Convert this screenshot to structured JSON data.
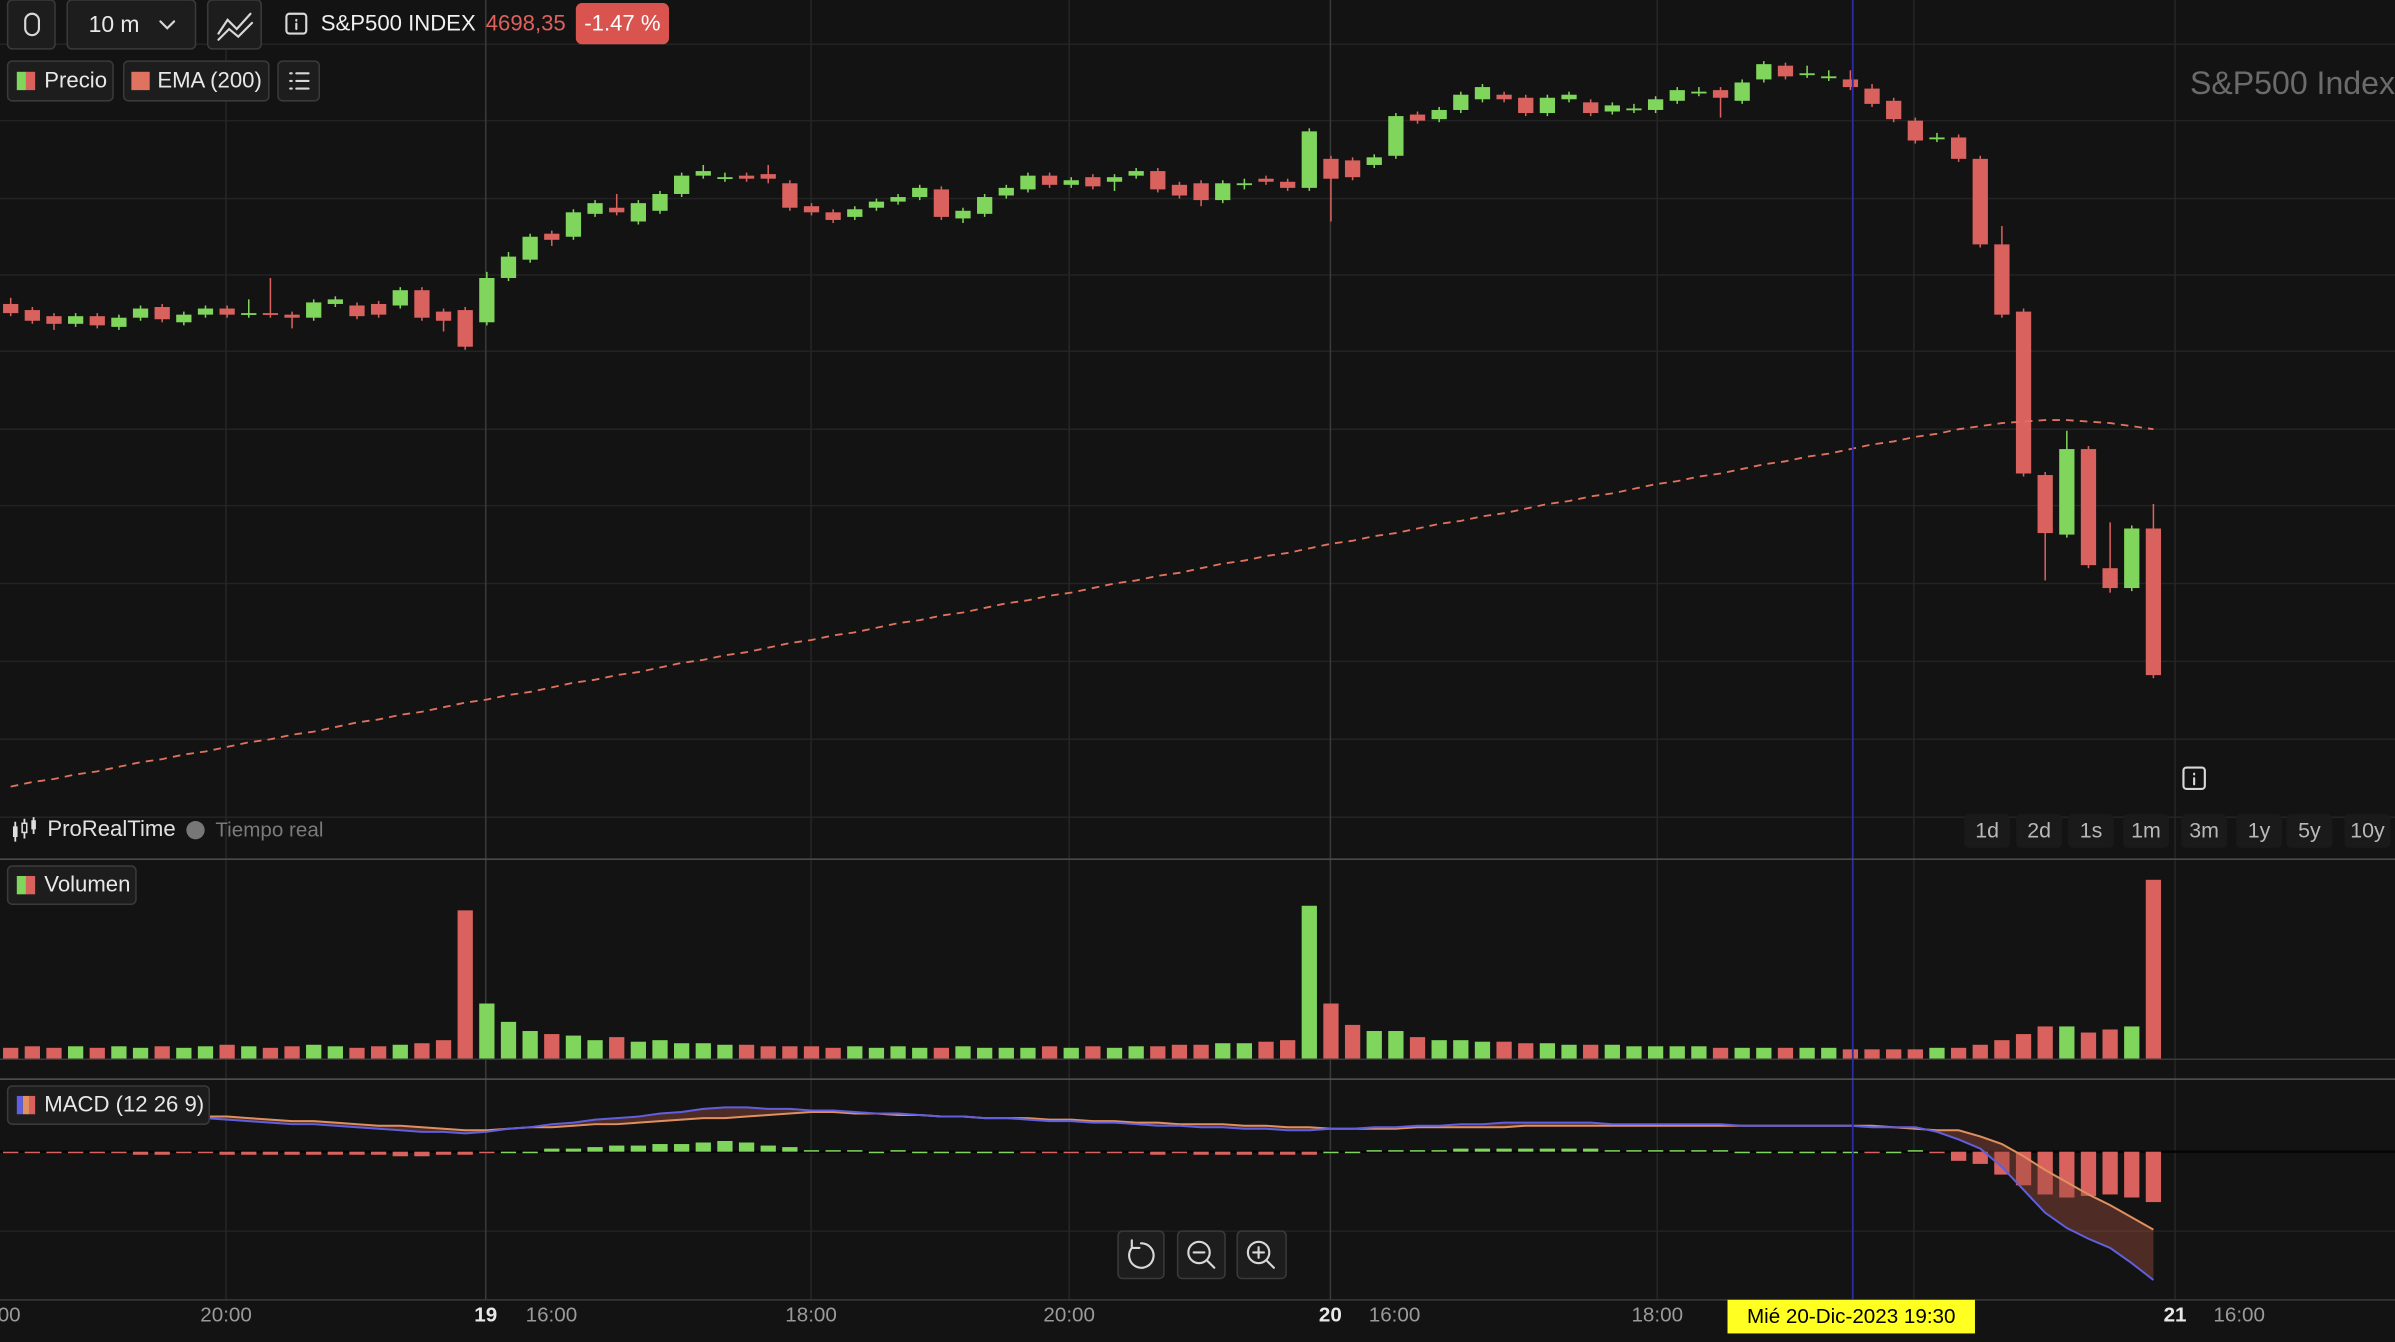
{
  "toolbar": {
    "interval": "10 m",
    "symbol": "S&P500 INDEX",
    "price": "4698,35",
    "change": "-1.47 %"
  },
  "watermark": "S&P500 Index",
  "footer": {
    "brand": "ProRealTime",
    "status": "Tiempo real",
    "ranges": [
      "1d",
      "2d",
      "1s",
      "1m",
      "3m",
      "1y",
      "5y",
      "10y"
    ]
  },
  "x_axis": {
    "labels": [
      "00",
      "20:00",
      "19",
      "16:00",
      "18:00",
      "20:00",
      "20",
      "16:00",
      "18:00",
      "21",
      "16:00"
    ],
    "cursor_label": "Mié 20-Dic-2023 19:30"
  },
  "chart_data": [
    {
      "type": "candlestick",
      "name": "Precio",
      "up_color": "#80d55c",
      "down_color": "#d9625e",
      "ylim": [
        0,
        535
      ],
      "grid": true,
      "candles": [
        [
          336,
          340,
          328,
          330
        ],
        [
          332,
          334,
          323,
          325
        ],
        [
          328,
          330,
          319,
          323
        ],
        [
          323,
          330,
          321,
          328
        ],
        [
          328,
          330,
          320,
          322
        ],
        [
          321,
          329,
          319,
          327
        ],
        [
          327,
          335,
          325,
          333
        ],
        [
          334,
          336,
          324,
          326
        ],
        [
          324,
          331,
          322,
          329
        ],
        [
          329,
          335,
          327,
          333
        ],
        [
          333,
          335,
          327,
          329
        ],
        [
          330,
          339,
          327,
          330
        ],
        [
          330,
          353,
          327,
          329
        ],
        [
          329,
          331,
          320,
          327
        ],
        [
          327,
          339,
          325,
          337
        ],
        [
          336,
          341,
          334,
          339
        ],
        [
          335,
          337,
          326,
          328
        ],
        [
          336,
          338,
          327,
          329
        ],
        [
          335,
          347,
          333,
          345
        ],
        [
          345,
          347,
          325,
          327
        ],
        [
          331,
          333,
          318,
          325
        ],
        [
          332,
          334,
          306,
          308
        ],
        [
          324,
          357,
          322,
          353
        ],
        [
          353,
          370,
          351,
          367
        ],
        [
          365,
          382,
          363,
          380
        ],
        [
          382,
          384,
          374,
          378
        ],
        [
          380,
          398,
          378,
          396
        ],
        [
          395,
          404,
          393,
          402
        ],
        [
          399,
          408,
          394,
          396
        ],
        [
          390,
          404,
          388,
          402
        ],
        [
          397,
          410,
          395,
          408
        ],
        [
          408,
          422,
          406,
          420
        ],
        [
          420,
          427,
          418,
          423
        ],
        [
          419,
          422,
          416,
          419
        ],
        [
          420,
          422,
          416,
          418
        ],
        [
          421,
          427,
          415,
          418
        ],
        [
          415,
          417,
          397,
          399
        ],
        [
          400,
          402,
          394,
          396
        ],
        [
          396,
          398,
          389,
          391
        ],
        [
          393,
          400,
          391,
          398
        ],
        [
          399,
          405,
          397,
          403
        ],
        [
          403,
          408,
          401,
          406
        ],
        [
          406,
          414,
          404,
          412
        ],
        [
          411,
          413,
          391,
          393
        ],
        [
          392,
          399,
          389,
          397
        ],
        [
          395,
          408,
          393,
          406
        ],
        [
          407,
          414,
          405,
          412
        ],
        [
          411,
          422,
          409,
          420
        ],
        [
          420,
          422,
          412,
          414
        ],
        [
          414,
          419,
          412,
          417
        ],
        [
          419,
          421,
          411,
          413
        ],
        [
          416,
          421,
          410,
          419
        ],
        [
          420,
          425,
          418,
          423
        ],
        [
          423,
          425,
          409,
          411
        ],
        [
          414,
          416,
          405,
          407
        ],
        [
          415,
          417,
          400,
          404
        ],
        [
          404,
          417,
          402,
          415
        ],
        [
          415,
          418,
          411,
          415
        ],
        [
          418,
          420,
          414,
          416
        ],
        [
          416,
          418,
          410,
          412
        ],
        [
          412,
          451,
          410,
          449
        ],
        [
          431,
          433,
          390,
          418
        ],
        [
          430,
          432,
          417,
          419
        ],
        [
          427,
          434,
          425,
          432
        ],
        [
          433,
          461,
          431,
          459
        ],
        [
          460,
          462,
          454,
          456
        ],
        [
          457,
          465,
          455,
          463
        ],
        [
          463,
          475,
          461,
          473
        ],
        [
          470,
          480,
          468,
          478
        ],
        [
          473,
          475,
          468,
          470
        ],
        [
          471,
          473,
          459,
          461
        ],
        [
          461,
          473,
          459,
          471
        ],
        [
          470,
          475,
          468,
          473
        ],
        [
          468,
          470,
          459,
          461
        ],
        [
          462,
          468,
          460,
          466
        ],
        [
          464,
          467,
          461,
          464
        ],
        [
          463,
          472,
          461,
          470
        ],
        [
          469,
          478,
          467,
          476
        ],
        [
          475,
          478,
          472,
          475
        ],
        [
          476,
          478,
          458,
          471
        ],
        [
          469,
          483,
          467,
          481
        ],
        [
          483,
          495,
          481,
          493
        ],
        [
          492,
          494,
          483,
          485
        ],
        [
          487,
          492,
          484,
          487
        ],
        [
          485,
          489,
          482,
          485
        ],
        [
          483,
          489,
          476,
          478
        ],
        [
          477,
          480,
          465,
          467
        ],
        [
          469,
          471,
          455,
          457
        ],
        [
          456,
          458,
          441,
          443
        ],
        [
          445,
          448,
          442,
          445
        ],
        [
          445,
          447,
          429,
          431
        ],
        [
          431,
          433,
          373,
          375
        ],
        [
          375,
          387,
          327,
          329
        ],
        [
          331,
          333,
          223,
          225
        ],
        [
          224,
          226,
          155,
          186
        ],
        [
          185,
          253,
          183,
          241
        ],
        [
          241,
          243,
          163,
          165
        ],
        [
          163,
          193,
          147,
          150
        ],
        [
          150,
          191,
          148,
          189
        ],
        [
          189,
          205,
          91,
          93
        ]
      ],
      "overlay": {
        "name": "EMA (200)",
        "color": "#e0735f",
        "dashed": true,
        "values": [
          20,
          23,
          25,
          28,
          30,
          33,
          36,
          38,
          41,
          43,
          46,
          49,
          51,
          54,
          56,
          59,
          62,
          64,
          67,
          69,
          72,
          75,
          77,
          80,
          82,
          85,
          88,
          90,
          93,
          95,
          98,
          101,
          103,
          106,
          108,
          111,
          114,
          116,
          119,
          121,
          124,
          127,
          129,
          132,
          134,
          137,
          140,
          142,
          145,
          147,
          150,
          153,
          155,
          158,
          160,
          163,
          166,
          168,
          171,
          173,
          176,
          179,
          181,
          184,
          186,
          189,
          192,
          194,
          197,
          199,
          202,
          205,
          207,
          210,
          212,
          215,
          218,
          220,
          223,
          225,
          228,
          231,
          233,
          236,
          238,
          241,
          244,
          246,
          249,
          251,
          254,
          256,
          258,
          259,
          260,
          260,
          259,
          258,
          256,
          254
        ]
      }
    },
    {
      "type": "bar",
      "name": "Volumen",
      "ylim": [
        0,
        130
      ],
      "values": [
        7,
        8,
        7,
        8,
        7,
        8,
        7,
        8,
        7,
        8,
        9,
        8,
        7,
        8,
        9,
        8,
        7,
        8,
        9,
        10,
        12,
        97,
        36,
        24,
        18,
        16,
        15,
        12,
        14,
        11,
        12,
        10,
        10,
        9,
        9,
        8,
        8,
        8,
        7,
        8,
        7,
        8,
        7,
        7,
        8,
        7,
        7,
        7,
        8,
        7,
        8,
        7,
        8,
        8,
        9,
        9,
        10,
        10,
        11,
        12,
        100,
        36,
        22,
        18,
        18,
        14,
        12,
        12,
        11,
        11,
        10,
        10,
        9,
        9,
        9,
        8,
        8,
        8,
        8,
        7,
        7,
        7,
        7,
        7,
        7,
        6,
        6,
        6,
        6,
        7,
        7,
        9,
        12,
        16,
        21,
        21,
        17,
        19,
        21,
        117
      ]
    },
    {
      "type": "macd",
      "name": "MACD (12 26 9)",
      "ylim": [
        -96,
        47
      ],
      "macd": {
        "color": "#5f5fe0",
        "values": [
          29,
          28,
          28,
          27,
          26,
          25,
          24,
          23,
          23,
          22,
          21,
          20,
          19,
          18,
          18,
          17,
          16,
          15,
          14,
          13,
          13,
          12,
          13,
          15,
          16,
          18,
          19,
          21,
          22,
          23,
          25,
          26,
          28,
          29,
          29,
          28,
          28,
          27,
          27,
          26,
          25,
          25,
          24,
          23,
          23,
          22,
          22,
          21,
          20,
          20,
          19,
          19,
          18,
          17,
          17,
          16,
          16,
          15,
          15,
          14,
          14,
          15,
          15,
          16,
          16,
          17,
          17,
          18,
          18,
          19,
          19,
          19,
          19,
          19,
          18,
          18,
          18,
          18,
          18,
          18,
          17,
          17,
          17,
          17,
          17,
          17,
          16,
          16,
          16,
          13,
          8,
          2,
          -10,
          -25,
          -40,
          -50,
          -57,
          -63,
          -73,
          -84
        ]
      },
      "signal": {
        "color": "#e0905f",
        "values": [
          30,
          29,
          29,
          28,
          27,
          26,
          26,
          25,
          24,
          23,
          23,
          22,
          21,
          20,
          20,
          19,
          18,
          17,
          17,
          16,
          15,
          14,
          14,
          15,
          16,
          16,
          17,
          18,
          18,
          19,
          20,
          21,
          22,
          22,
          23,
          24,
          25,
          26,
          26,
          25,
          25,
          24,
          24,
          23,
          23,
          22,
          22,
          22,
          21,
          21,
          20,
          20,
          19,
          19,
          18,
          18,
          18,
          17,
          17,
          16,
          16,
          15,
          15,
          15,
          15,
          16,
          16,
          16,
          16,
          16,
          17,
          17,
          17,
          17,
          17,
          17,
          17,
          17,
          17,
          17,
          17,
          17,
          17,
          17,
          17,
          17,
          17,
          16,
          15,
          14,
          14,
          10,
          5,
          -3,
          -12,
          -20,
          -28,
          -35,
          -43,
          -51
        ]
      },
      "histogram": [
        -1,
        -1,
        -1,
        -1,
        -1,
        -1,
        -2,
        -2,
        -1,
        -1,
        -2,
        -2,
        -2,
        -2,
        -2,
        -2,
        -2,
        -2,
        -3,
        -3,
        -2,
        -2,
        -1,
        0,
        0,
        2,
        2,
        3,
        4,
        4,
        5,
        5,
        6,
        7,
        6,
        4,
        3,
        1,
        1,
        1,
        0,
        1,
        0,
        0,
        0,
        0,
        0,
        -1,
        -1,
        -1,
        -1,
        -1,
        -1,
        -2,
        -1,
        -2,
        -2,
        -2,
        -2,
        -2,
        -2,
        0,
        0,
        1,
        1,
        1,
        1,
        2,
        2,
        2,
        2,
        2,
        2,
        2,
        1,
        1,
        1,
        1,
        1,
        1,
        0,
        0,
        0,
        0,
        0,
        0,
        -1,
        0,
        1,
        -1,
        -6,
        -8,
        -15,
        -22,
        -28,
        -30,
        -29,
        -28,
        -30,
        -33
      ]
    }
  ]
}
